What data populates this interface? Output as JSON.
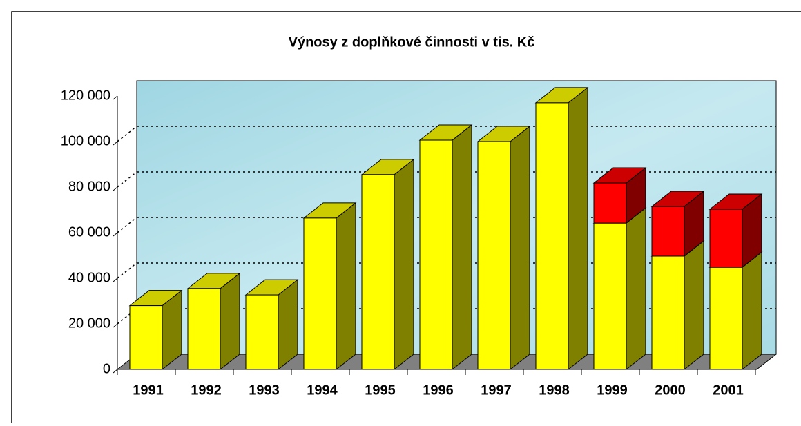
{
  "chart_data": {
    "type": "bar3d_stacked",
    "title": "Výnosy z doplňkové činnosti v tis. Kč",
    "categories": [
      "1991",
      "1992",
      "1993",
      "1994",
      "1995",
      "1996",
      "1997",
      "1998",
      "1999",
      "2000",
      "2001"
    ],
    "series": [
      {
        "color": "#ffff00",
        "values": [
          28000,
          35500,
          32700,
          66400,
          85500,
          100600,
          100000,
          117000,
          64200,
          49700,
          44800
        ]
      },
      {
        "color": "#ff0000",
        "values": [
          null,
          null,
          null,
          null,
          null,
          null,
          null,
          null,
          17600,
          21800,
          25500
        ]
      }
    ],
    "ylim": [
      0,
      120000
    ],
    "yticks": [
      0,
      {
        "value": 20000,
        "label": "20 000"
      },
      {
        "value": 40000,
        "label": "40 000"
      },
      {
        "value": 60000,
        "label": "60 000"
      },
      {
        "value": 80000,
        "label": "80 000"
      },
      {
        "value": 100000,
        "label": "100 000"
      },
      {
        "value": 120000,
        "label": "120 000"
      }
    ],
    "grid": true
  }
}
